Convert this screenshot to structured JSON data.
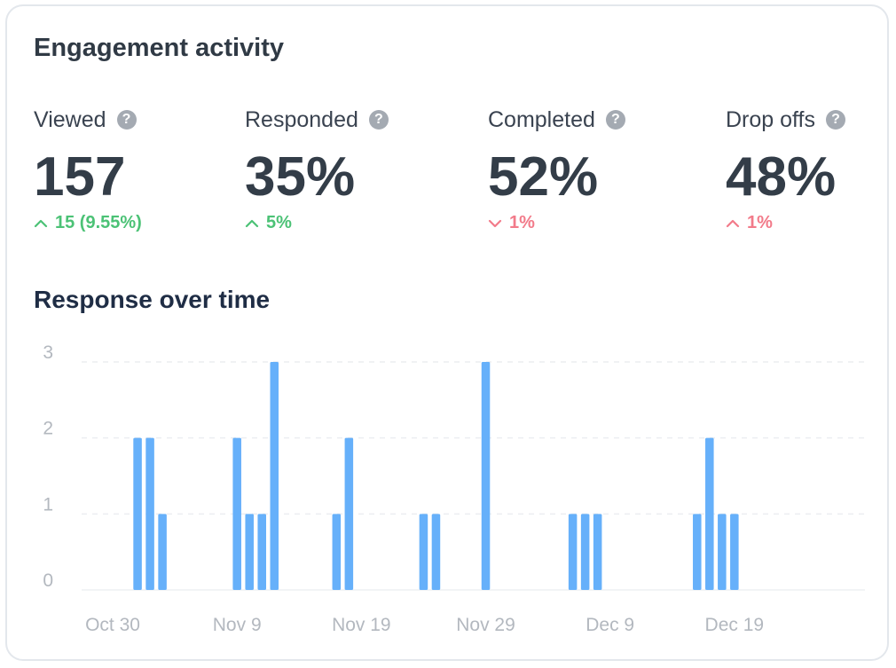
{
  "card": {
    "title": "Engagement activity"
  },
  "metrics": [
    {
      "label": "Viewed",
      "value": "157",
      "change": "15 (9.55%)",
      "direction": "up",
      "trend": "positive"
    },
    {
      "label": "Responded",
      "value": "35%",
      "change": "5%",
      "direction": "up",
      "trend": "positive"
    },
    {
      "label": "Completed",
      "value": "52%",
      "change": "1%",
      "direction": "down",
      "trend": "negative"
    },
    {
      "label": "Drop offs",
      "value": "48%",
      "change": "1%",
      "direction": "up",
      "trend": "negative"
    }
  ],
  "help_icon_glyph": "?",
  "colors": {
    "positive": "#4cc276",
    "negative": "#f27b8a",
    "bar": "#66b0fa"
  },
  "chart_data": {
    "type": "bar",
    "title": "Response over time",
    "xlabel": "",
    "ylabel": "",
    "ylim": [
      0,
      3
    ],
    "yticks": [
      0,
      1,
      2,
      3
    ],
    "grid": true,
    "x_tick_labels": [
      "Oct 30",
      "Nov 9",
      "Nov 19",
      "Nov 29",
      "Dec 9",
      "Dec 19"
    ],
    "x_tick_dates": [
      "2023-10-30",
      "2023-11-09",
      "2023-11-19",
      "2023-11-29",
      "2023-12-09",
      "2023-12-19"
    ],
    "x_range": [
      "2023-10-28",
      "2023-12-30"
    ],
    "points": [
      {
        "x": "2023-11-01",
        "y": 2
      },
      {
        "x": "2023-11-02",
        "y": 2
      },
      {
        "x": "2023-11-03",
        "y": 1
      },
      {
        "x": "2023-11-09",
        "y": 2
      },
      {
        "x": "2023-11-10",
        "y": 1
      },
      {
        "x": "2023-11-11",
        "y": 1
      },
      {
        "x": "2023-11-12",
        "y": 3
      },
      {
        "x": "2023-11-17",
        "y": 1
      },
      {
        "x": "2023-11-18",
        "y": 2
      },
      {
        "x": "2023-11-24",
        "y": 1
      },
      {
        "x": "2023-11-25",
        "y": 1
      },
      {
        "x": "2023-11-29",
        "y": 3
      },
      {
        "x": "2023-12-06",
        "y": 1
      },
      {
        "x": "2023-12-07",
        "y": 1
      },
      {
        "x": "2023-12-08",
        "y": 1
      },
      {
        "x": "2023-12-16",
        "y": 1
      },
      {
        "x": "2023-12-17",
        "y": 2
      },
      {
        "x": "2023-12-18",
        "y": 1
      },
      {
        "x": "2023-12-19",
        "y": 1
      }
    ]
  }
}
